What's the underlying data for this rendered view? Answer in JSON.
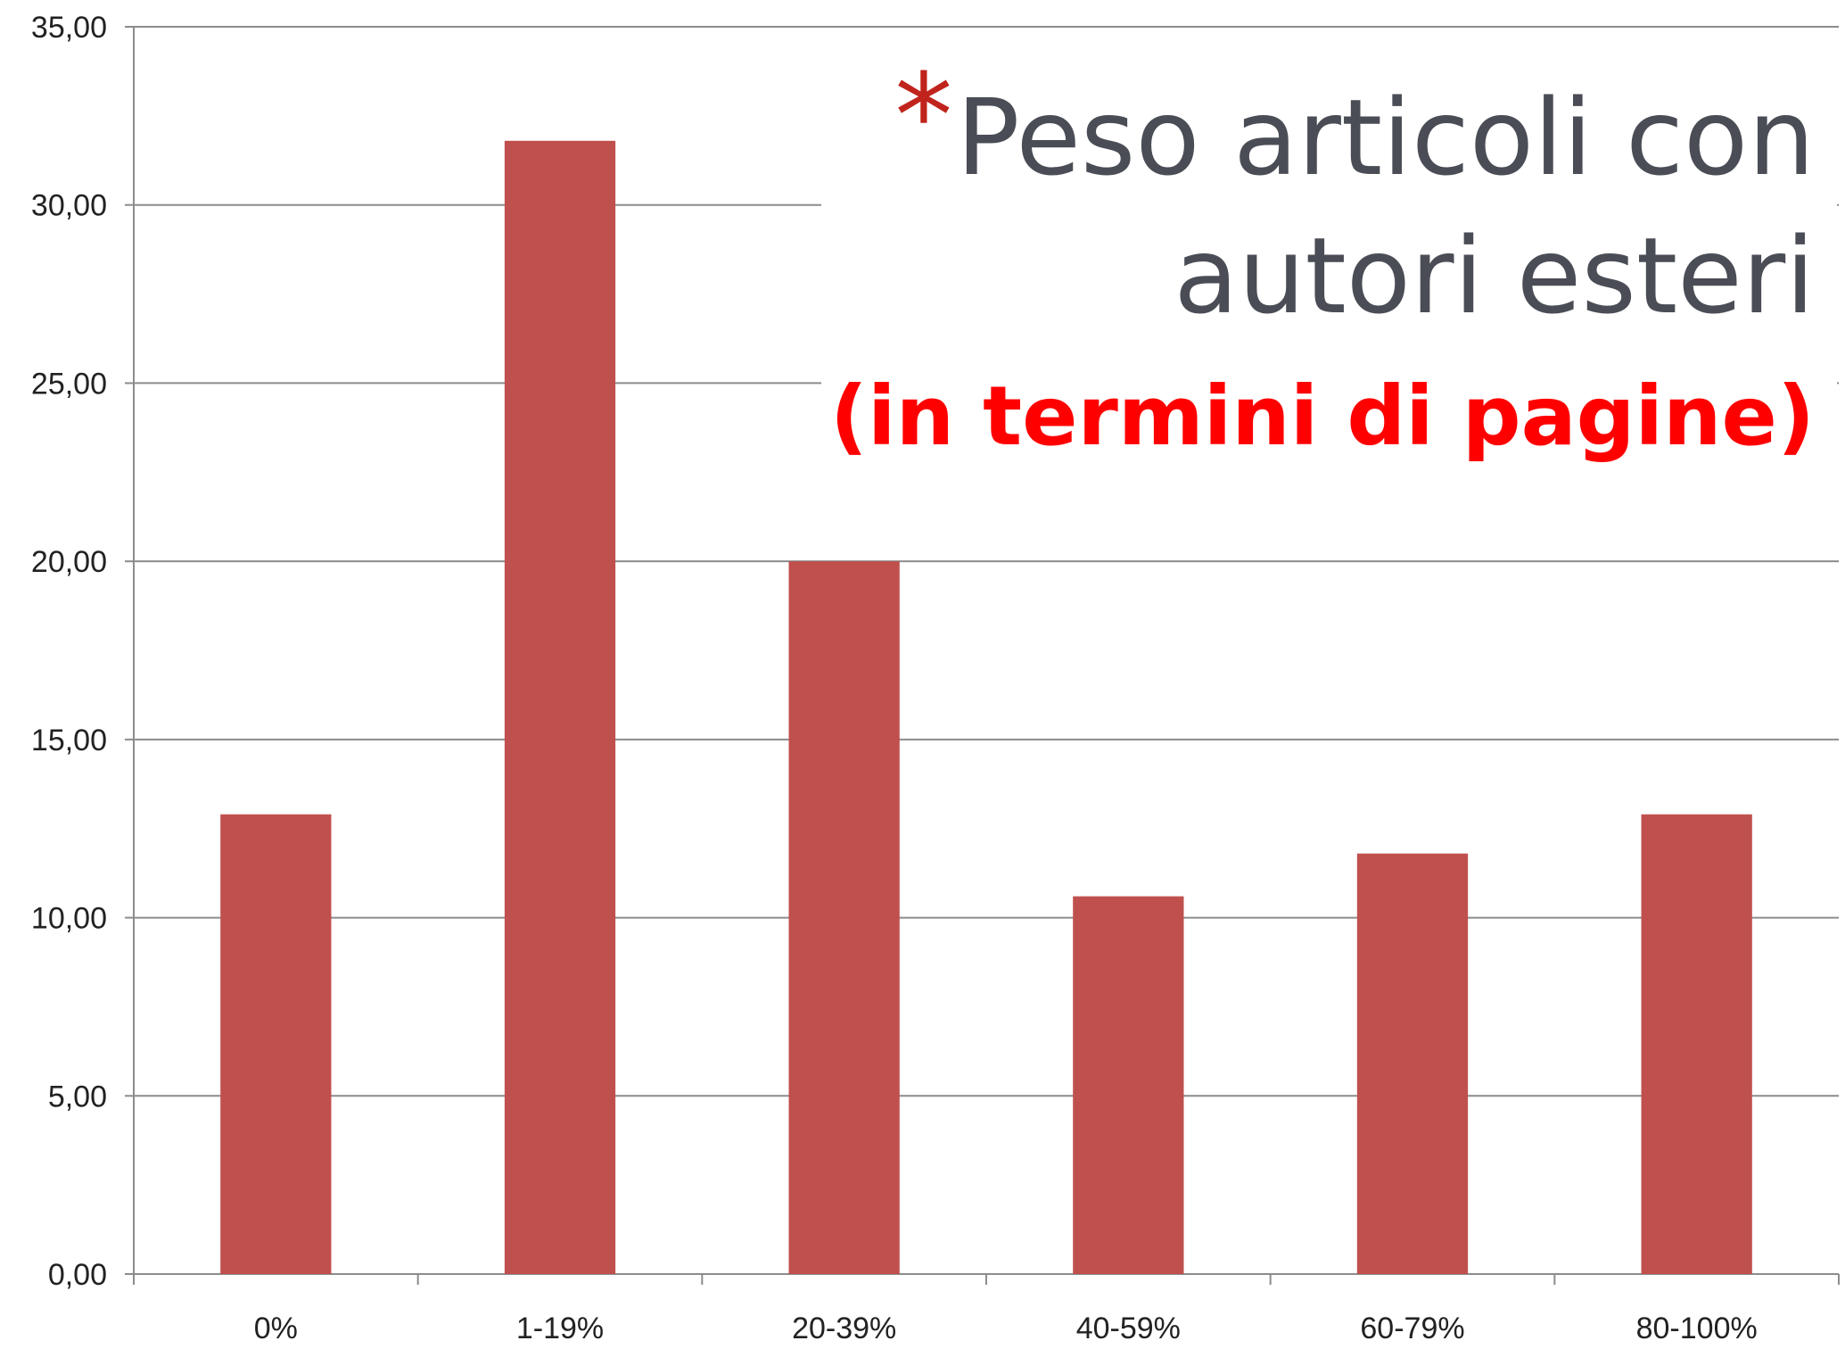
{
  "chart_data": {
    "type": "bar",
    "title_marker": "*",
    "title": [
      "Peso articoli con",
      "autori esteri"
    ],
    "subtitle": "(in termini di pagine)",
    "categories": [
      "0%",
      "1-19%",
      "20-39%",
      "40-59%",
      "60-79%",
      "80-100%"
    ],
    "values": [
      12.9,
      31.8,
      20.0,
      10.6,
      11.8,
      12.9
    ],
    "color": "#c0504d",
    "ylim": [
      0,
      35
    ],
    "yticks": [
      {
        "value": 0,
        "label": "0,00"
      },
      {
        "value": 5,
        "label": "5,00"
      },
      {
        "value": 10,
        "label": "10,00"
      },
      {
        "value": 15,
        "label": "15,00"
      },
      {
        "value": 20,
        "label": "20,00"
      },
      {
        "value": 25,
        "label": "25,00"
      },
      {
        "value": 30,
        "label": "30,00"
      },
      {
        "value": 35,
        "label": "35,00"
      }
    ],
    "grid": true
  }
}
